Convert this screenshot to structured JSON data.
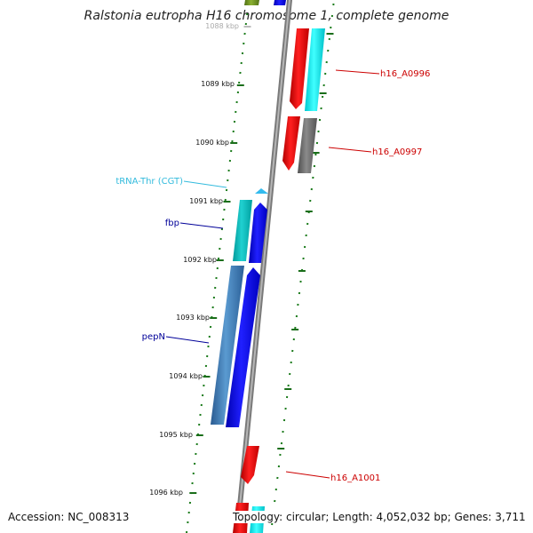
{
  "title": "Ralstonia eutropha H16 chromosome 1, complete genome",
  "footer": {
    "accession": "Accession: NC_008313",
    "summary": "Topology: circular; Length: 4,052,032 bp; Genes: 3,711"
  },
  "ticks": [
    "1088 kbp",
    "1089 kbp",
    "1090 kbp",
    "1091 kbp",
    "1092 kbp",
    "1093 kbp",
    "1094 kbp",
    "1095 kbp",
    "1096 kbp"
  ],
  "gene_labels": [
    {
      "text": "h16_A0996",
      "color": "#cc0000"
    },
    {
      "text": "h16_A0997",
      "color": "#cc0000"
    },
    {
      "text": "tRNA-Thr (CGT)",
      "color": "#33bbdd"
    },
    {
      "text": "fbp",
      "color": "#000099"
    },
    {
      "text": "pepN",
      "color": "#000099"
    },
    {
      "text": "h16_A1001",
      "color": "#cc0000"
    }
  ],
  "colors": {
    "backbone": "#8a8a8a",
    "dots": "#1a7a1a",
    "ticks": "#1a6e1a",
    "red_gene": "#ee0000",
    "cyan_gene": "#00e5ee",
    "blue_gene": "#0000ee",
    "teal_gene": "#00b8b8",
    "steel_gene": "#3b78b5",
    "gray_gene": "#707070",
    "olive_gene": "#6b8e23"
  }
}
